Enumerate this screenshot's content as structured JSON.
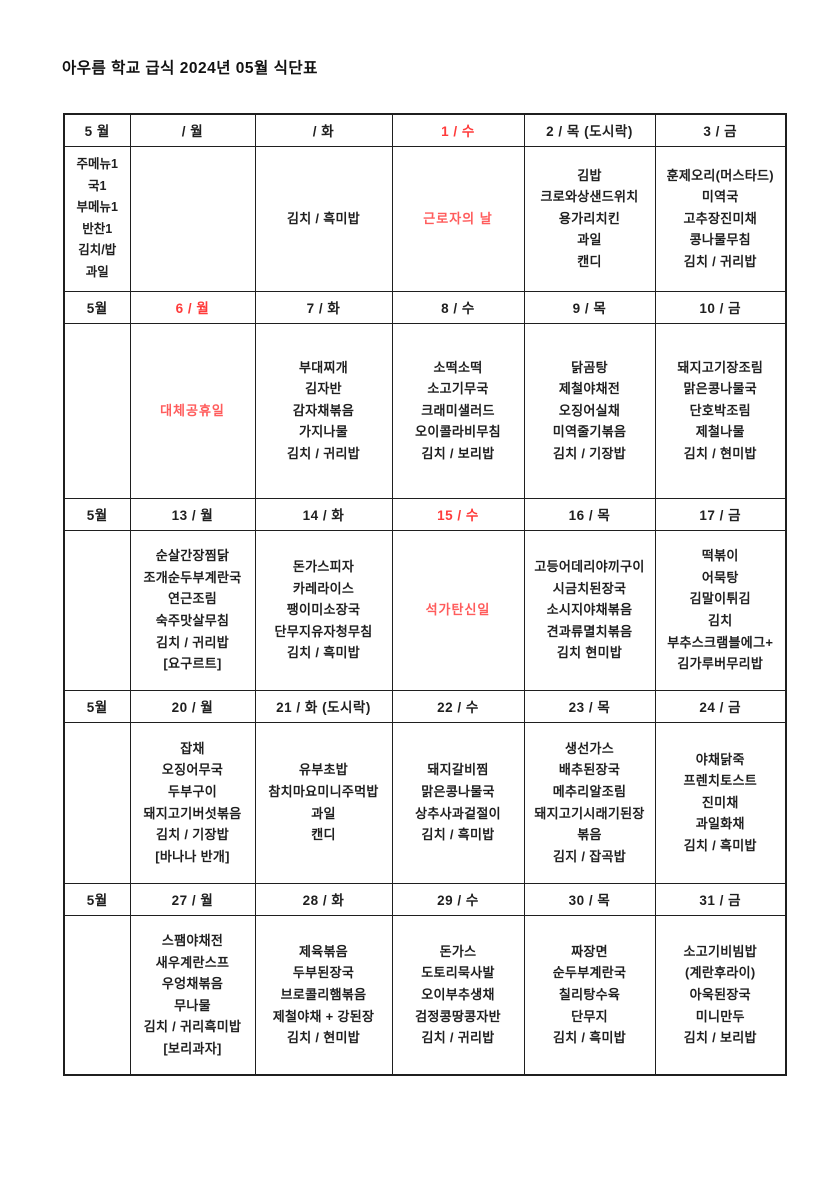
{
  "title": "아우름 학교 급식 2024년 05월 식단표",
  "colors": {
    "background": "#ffffff",
    "text": "#1f1f1f",
    "border": "#1f1f1f",
    "header_date_red": "#ff3b3b",
    "holiday_red": "#ff5c5c"
  },
  "weeks": [
    {
      "month": "5 월",
      "categories": [
        "주메뉴1",
        "국1",
        "부메뉴1",
        "반찬1",
        "김치/밥",
        "과일"
      ],
      "days": [
        {
          "header": "/ 월",
          "items": []
        },
        {
          "header": "/ 화",
          "items": [
            "김치 / 흑미밥"
          ]
        },
        {
          "header": "1 / 수",
          "holiday": "근로자의 날"
        },
        {
          "header": "2 / 목 (도시락)",
          "items": [
            "김밥",
            "크로와상샌드위치",
            "용가리치킨",
            "과일",
            "캔디"
          ]
        },
        {
          "header": "3 / 금",
          "items": [
            "훈제오리(머스타드)",
            "미역국",
            "고추장진미채",
            "콩나물무침",
            "김치 / 귀리밥"
          ]
        }
      ]
    },
    {
      "month": "5월",
      "days": [
        {
          "header": "6 / 월",
          "holiday": "대체공휴일"
        },
        {
          "header": "7 / 화",
          "items": [
            "부대찌개",
            "김자반",
            "감자채볶음",
            "가지나물",
            "김치 / 귀리밥"
          ]
        },
        {
          "header": "8 / 수",
          "items": [
            "소떡소떡",
            "소고기무국",
            "크래미샐러드",
            "오이콜라비무침",
            "김치 / 보리밥"
          ]
        },
        {
          "header": "9 / 목",
          "items": [
            "닭곰탕",
            "제철야채전",
            "오징어실채",
            "미역줄기볶음",
            "김치 / 기장밥"
          ]
        },
        {
          "header": "10 / 금",
          "items": [
            "돼지고기장조림",
            "맑은콩나물국",
            "단호박조림",
            "제철나물",
            "김치 / 현미밥"
          ]
        }
      ]
    },
    {
      "month": "5월",
      "days": [
        {
          "header": "13 / 월",
          "items": [
            "순살간장찜닭",
            "조개순두부계란국",
            "연근조림",
            "숙주맛살무침",
            "김치 / 귀리밥",
            "[요구르트]"
          ]
        },
        {
          "header": "14 / 화",
          "items": [
            "돈가스피자",
            "카레라이스",
            "팽이미소장국",
            "단무지유자청무침",
            "김치 / 흑미밥"
          ]
        },
        {
          "header": "15 / 수",
          "holiday": "석가탄신일"
        },
        {
          "header": "16 / 목",
          "items": [
            "고등어데리야끼구이",
            "시금치된장국",
            "소시지야채볶음",
            "견과류멸치볶음",
            "김치 현미밥"
          ]
        },
        {
          "header": "17 / 금",
          "items": [
            "떡볶이",
            "어묵탕",
            "김말이튀김",
            "김치",
            "부추스크램블에그+",
            "김가루버무리밥"
          ]
        }
      ]
    },
    {
      "month": "5월",
      "days": [
        {
          "header": "20 / 월",
          "items": [
            "잡채",
            "오징어무국",
            "두부구이",
            "돼지고기버섯볶음",
            "김치 / 기장밥",
            "[바나나 반개]"
          ]
        },
        {
          "header": "21 / 화 (도시락)",
          "items": [
            "유부초밥",
            "참치마요미니주먹밥",
            "과일",
            "캔디"
          ]
        },
        {
          "header": "22 / 수",
          "items": [
            "돼지갈비찜",
            "맑은콩나물국",
            "상추사과겉절이",
            "김치 / 흑미밥"
          ]
        },
        {
          "header": "23 / 목",
          "items": [
            "생선가스",
            "배추된장국",
            "메추리알조림",
            "돼지고기시래기된장",
            "볶음",
            "김지 / 잡곡밥"
          ]
        },
        {
          "header": "24 / 금",
          "items": [
            "야채닭죽",
            "프렌치토스트",
            "진미채",
            "과일화채",
            "김치 / 흑미밥"
          ]
        }
      ]
    },
    {
      "month": "5월",
      "days": [
        {
          "header": "27 / 월",
          "items": [
            "스팸야채전",
            "새우계란스프",
            "우엉채볶음",
            "무나물",
            "김치 / 귀리흑미밥",
            "[보리과자]"
          ]
        },
        {
          "header": "28 / 화",
          "items": [
            "제육볶음",
            "두부된장국",
            "브로콜리햄볶음",
            "제철야채 + 강된장",
            "김치 / 현미밥"
          ]
        },
        {
          "header": "29 / 수",
          "items": [
            "돈가스",
            "도토리묵사발",
            "오이부추생채",
            "검정콩땅콩자반",
            "김치 / 귀리밥"
          ]
        },
        {
          "header": "30 / 목",
          "items": [
            "짜장면",
            "순두부계란국",
            "칠리탕수육",
            "단무지",
            "김치 / 흑미밥"
          ]
        },
        {
          "header": "31 / 금",
          "items": [
            "소고기비빔밥",
            "(계란후라이)",
            "아욱된장국",
            "미니만두",
            "김치 / 보리밥"
          ]
        }
      ]
    }
  ]
}
